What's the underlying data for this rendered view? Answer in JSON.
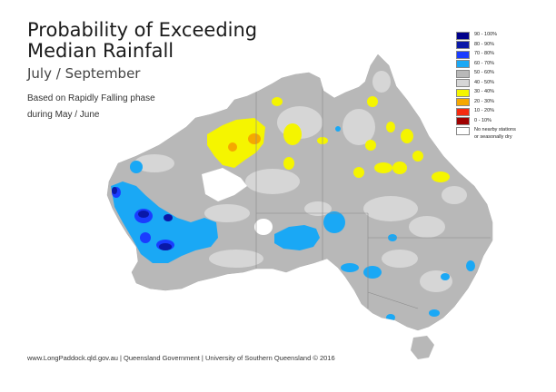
{
  "header": {
    "title_line1": "Probability of Exceeding",
    "title_line2": "Median Rainfall",
    "period": "July / September",
    "subtitle_line1": "Based on Rapidly Falling phase",
    "subtitle_line2": "during May / June"
  },
  "legend": {
    "items": [
      {
        "label": "90 - 100%",
        "color": "#00008b"
      },
      {
        "label": "80 - 90%",
        "color": "#0a18a8"
      },
      {
        "label": "70 - 80%",
        "color": "#1a3cff"
      },
      {
        "label": "60 - 70%",
        "color": "#1aa8f5"
      },
      {
        "label": "50 - 60%",
        "color": "#b8b8b8"
      },
      {
        "label": "40 - 50%",
        "color": "#d6d6d6"
      },
      {
        "label": "30 - 40%",
        "color": "#f5f500"
      },
      {
        "label": "20 - 30%",
        "color": "#f5a800"
      },
      {
        "label": "10 - 20%",
        "color": "#f52a10"
      },
      {
        "label": "0 - 10%",
        "color": "#a00000"
      }
    ],
    "no_data_line1": "No nearby stations",
    "no_data_line2": "or seasonally dry",
    "no_data_color": "#ffffff"
  },
  "footer": {
    "credit": "www.LongPaddock.qld.gov.au | Queensland Government | University of Southern Queensland © 2016"
  },
  "map": {
    "base_color": "#b8b8b8",
    "light_color": "#d6d6d6",
    "border_color": "#8a8a8a"
  }
}
